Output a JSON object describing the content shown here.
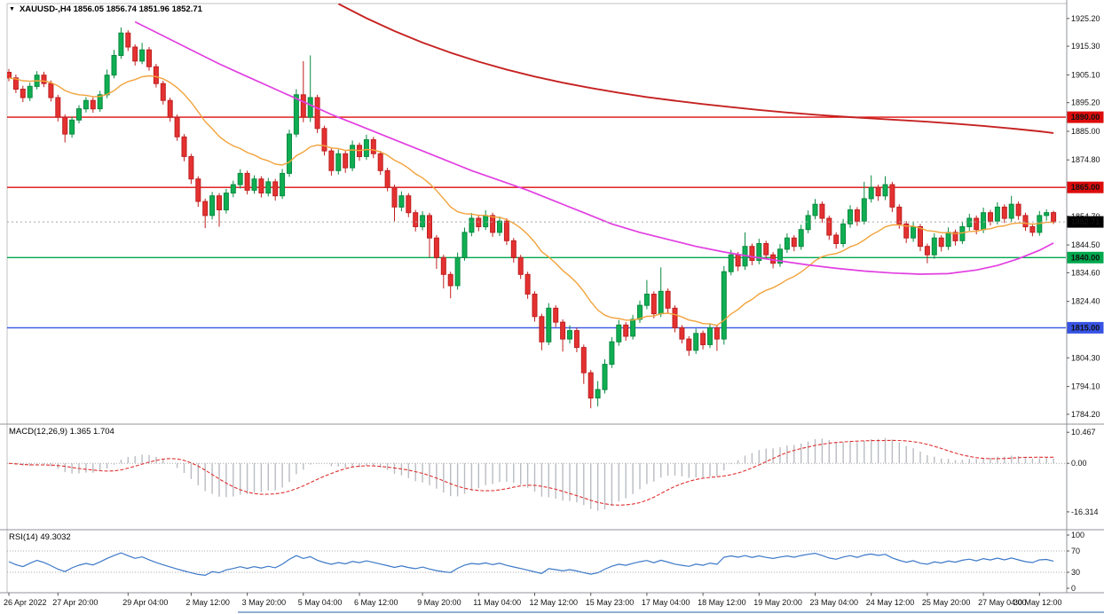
{
  "header": {
    "title": "XAUUSD-,H4 1856.05 1856.74 1851.96 1852.71",
    "menu_icon": "▼"
  },
  "colors": {
    "background": "#ffffff",
    "frame": "#8f9398",
    "up": "#0fae52",
    "up_dark": "#0a8a40",
    "down": "#e53131",
    "down_dark": "#bf2020",
    "ma_fast": "#f2a33c",
    "ma_mid": "#e23fe2",
    "ma_slow": "#c62222",
    "level_red": "#dd0b0b",
    "level_green": "#00a84d",
    "level_blue": "#3653e3",
    "price_marker_bg": "#000000",
    "dotted": "#a8a8a8",
    "macd_hist": "#b9bcc2",
    "macd_signal": "#e03030",
    "rsi_line": "#3c78c8",
    "axis_text": "#111111",
    "bottom_edge": "#6f94c4"
  },
  "chart_data": {
    "type": "candlestick",
    "symbol": "XAUUSD-",
    "timeframe": "H4",
    "last_bar": {
      "open": 1856.05,
      "high": 1856.74,
      "low": 1851.96,
      "close": 1852.71
    },
    "price_axis": {
      "min": 1781.0,
      "max": 1930.5,
      "ticks": [
        {
          "v": 1925.2,
          "t": "1925.20"
        },
        {
          "v": 1915.3,
          "t": "1915.30"
        },
        {
          "v": 1905.1,
          "t": "1905.10"
        },
        {
          "v": 1895.2,
          "t": "1895.20"
        },
        {
          "v": 1885.0,
          "t": "1885.00"
        },
        {
          "v": 1874.8,
          "t": "1874.80"
        },
        {
          "v": 1854.7,
          "t": "1854.70"
        },
        {
          "v": 1844.5,
          "t": "1844.50"
        },
        {
          "v": 1834.6,
          "t": "1834.60"
        },
        {
          "v": 1824.4,
          "t": "1824.40"
        },
        {
          "v": 1804.3,
          "t": "1804.30"
        },
        {
          "v": 1794.1,
          "t": "1794.10"
        },
        {
          "v": 1784.2,
          "t": "1784.20"
        }
      ]
    },
    "levels": [
      {
        "price": 1890.0,
        "label": "1890.00",
        "color": "red",
        "style": "solid"
      },
      {
        "price": 1865.0,
        "label": "1865.00",
        "color": "red",
        "style": "solid"
      },
      {
        "price": 1840.0,
        "label": "1840.00",
        "color": "green",
        "style": "solid"
      },
      {
        "price": 1815.0,
        "label": "1815.00",
        "color": "blue",
        "style": "solid"
      },
      {
        "price": 1852.71,
        "label": "1852.71",
        "color": "black",
        "style": "dotted"
      }
    ],
    "time_labels": [
      {
        "i": 0,
        "t": "26 Apr 2022"
      },
      {
        "i": 7,
        "t": "27 Apr 20:00"
      },
      {
        "i": 17,
        "t": "29 Apr 04:00"
      },
      {
        "i": 26,
        "t": "2 May 12:00"
      },
      {
        "i": 34,
        "t": "3 May 20:00"
      },
      {
        "i": 42,
        "t": "5 May 04:00"
      },
      {
        "i": 50,
        "t": "6 May 12:00"
      },
      {
        "i": 59,
        "t": "9 May 20:00"
      },
      {
        "i": 67,
        "t": "11 May 04:00"
      },
      {
        "i": 75,
        "t": "12 May 12:00"
      },
      {
        "i": 83,
        "t": "15 May 23:00"
      },
      {
        "i": 91,
        "t": "17 May 04:00"
      },
      {
        "i": 99,
        "t": "18 May 12:00"
      },
      {
        "i": 107,
        "t": "19 May 20:00"
      },
      {
        "i": 115,
        "t": "23 May 04:00"
      },
      {
        "i": 123,
        "t": "24 May 12:00"
      },
      {
        "i": 131,
        "t": "25 May 20:00"
      },
      {
        "i": 139,
        "t": "27 May 04:00"
      },
      {
        "i": 147,
        "t": "30 May 12:00"
      }
    ],
    "candles": [
      [
        1906,
        1907.2,
        1902.8,
        1904
      ],
      [
        1904,
        1905.2,
        1898.6,
        1900
      ],
      [
        1900,
        1901.2,
        1895.4,
        1897
      ],
      [
        1897,
        1902.3,
        1895.8,
        1901
      ],
      [
        1901,
        1906.4,
        1899.9,
        1905
      ],
      [
        1905,
        1906.2,
        1900.7,
        1902
      ],
      [
        1902,
        1903.1,
        1895.6,
        1897
      ],
      [
        1897,
        1898,
        1888.5,
        1890
      ],
      [
        1890,
        1891,
        1881,
        1884
      ],
      [
        1884,
        1890.2,
        1882.7,
        1889
      ],
      [
        1889,
        1894.3,
        1887.8,
        1893
      ],
      [
        1893,
        1897.2,
        1891.7,
        1896
      ],
      [
        1896,
        1897.1,
        1891.6,
        1893
      ],
      [
        1893,
        1899.4,
        1891.9,
        1898
      ],
      [
        1898,
        1907,
        1896.8,
        1905
      ],
      [
        1905,
        1914,
        1903.9,
        1912
      ],
      [
        1912,
        1922,
        1910.8,
        1920
      ],
      [
        1920,
        1921,
        1913.6,
        1915
      ],
      [
        1915,
        1916,
        1908.4,
        1910
      ],
      [
        1910,
        1916.5,
        1908.9,
        1914
      ],
      [
        1914,
        1915,
        1906.6,
        1908
      ],
      [
        1908,
        1909,
        1900.6,
        1902
      ],
      [
        1902,
        1903,
        1894.5,
        1896
      ],
      [
        1896,
        1897,
        1888.4,
        1890
      ],
      [
        1890,
        1891,
        1881.6,
        1883
      ],
      [
        1883,
        1884,
        1874.3,
        1876
      ],
      [
        1876,
        1877,
        1866.2,
        1868
      ],
      [
        1868,
        1869,
        1858.1,
        1860
      ],
      [
        1860,
        1861,
        1850.5,
        1855
      ],
      [
        1855,
        1863.4,
        1853.6,
        1862
      ],
      [
        1862,
        1863,
        1851,
        1857
      ],
      [
        1857,
        1864.5,
        1855.7,
        1863
      ],
      [
        1863,
        1867.4,
        1861.5,
        1866
      ],
      [
        1866,
        1871.5,
        1864.6,
        1870
      ],
      [
        1870,
        1871,
        1862.5,
        1864
      ],
      [
        1864,
        1869.3,
        1862.8,
        1868
      ],
      [
        1868,
        1869,
        1861.4,
        1863
      ],
      [
        1863,
        1868.4,
        1861.8,
        1867
      ],
      [
        1867,
        1868,
        1860.3,
        1862
      ],
      [
        1862,
        1871.6,
        1860.9,
        1870
      ],
      [
        1870,
        1885.6,
        1868.8,
        1884
      ],
      [
        1884,
        1900,
        1882.9,
        1898
      ],
      [
        1898,
        1910,
        1888.2,
        1890
      ],
      [
        1890,
        1912,
        1888.3,
        1897
      ],
      [
        1897,
        1898,
        1884.4,
        1886
      ],
      [
        1886,
        1887,
        1876.4,
        1878
      ],
      [
        1878,
        1879,
        1869.2,
        1871
      ],
      [
        1871,
        1878.5,
        1869.6,
        1877
      ],
      [
        1877,
        1878,
        1870.2,
        1872
      ],
      [
        1872,
        1881.7,
        1870.8,
        1880
      ],
      [
        1880,
        1881,
        1874.5,
        1876
      ],
      [
        1876,
        1883.8,
        1874.8,
        1882
      ],
      [
        1882,
        1883,
        1875.4,
        1877
      ],
      [
        1877,
        1878,
        1869.5,
        1871
      ],
      [
        1871,
        1872,
        1863.6,
        1865
      ],
      [
        1865,
        1866,
        1853,
        1858
      ],
      [
        1858,
        1863.6,
        1856.5,
        1862
      ],
      [
        1862,
        1863,
        1854.4,
        1856
      ],
      [
        1856,
        1857,
        1849.3,
        1851
      ],
      [
        1851,
        1856.5,
        1849.7,
        1855
      ],
      [
        1855,
        1856,
        1840,
        1847
      ],
      [
        1847,
        1848,
        1836,
        1840
      ],
      [
        1840,
        1841,
        1829,
        1834
      ],
      [
        1834,
        1835,
        1825.5,
        1830
      ],
      [
        1830,
        1841.8,
        1828.6,
        1840
      ],
      [
        1840,
        1850.7,
        1838.9,
        1849
      ],
      [
        1849,
        1855.9,
        1847.6,
        1854
      ],
      [
        1854,
        1855,
        1849.4,
        1851
      ],
      [
        1851,
        1856.9,
        1849.8,
        1855
      ],
      [
        1855,
        1856,
        1847.4,
        1849
      ],
      [
        1849,
        1854.6,
        1847.7,
        1853
      ],
      [
        1853,
        1854,
        1844.5,
        1846
      ],
      [
        1846,
        1847,
        1838.2,
        1840
      ],
      [
        1840,
        1841,
        1832.4,
        1834
      ],
      [
        1834,
        1835,
        1825.3,
        1827
      ],
      [
        1827,
        1828,
        1817.2,
        1819
      ],
      [
        1819,
        1820,
        1807,
        1810
      ],
      [
        1810,
        1823.8,
        1808.8,
        1822
      ],
      [
        1822,
        1823,
        1815.3,
        1817
      ],
      [
        1817,
        1818,
        1806.5,
        1811
      ],
      [
        1811,
        1815.9,
        1809.4,
        1814
      ],
      [
        1814,
        1815,
        1806.3,
        1808
      ],
      [
        1808,
        1809,
        1795,
        1799
      ],
      [
        1799,
        1800,
        1786.3,
        1790
      ],
      [
        1790,
        1796,
        1787,
        1793
      ],
      [
        1793,
        1803.8,
        1791.6,
        1802
      ],
      [
        1802,
        1811.7,
        1800.7,
        1810
      ],
      [
        1810,
        1817.8,
        1808.6,
        1816
      ],
      [
        1816,
        1817,
        1810.4,
        1812
      ],
      [
        1812,
        1819.6,
        1810.8,
        1818
      ],
      [
        1818,
        1824.7,
        1816.7,
        1823
      ],
      [
        1823,
        1832,
        1821.6,
        1827
      ],
      [
        1827,
        1828,
        1818.4,
        1820
      ],
      [
        1820,
        1836.5,
        1818.8,
        1828
      ],
      [
        1828,
        1829,
        1820.3,
        1822
      ],
      [
        1822,
        1823,
        1813.4,
        1815
      ],
      [
        1815,
        1816,
        1809.4,
        1811
      ],
      [
        1811,
        1812,
        1805,
        1807
      ],
      [
        1807,
        1814.7,
        1805.7,
        1813
      ],
      [
        1813,
        1814,
        1807.3,
        1809
      ],
      [
        1809,
        1816.6,
        1807.8,
        1815
      ],
      [
        1815,
        1816,
        1806.8,
        1811
      ],
      [
        1811,
        1837,
        1809,
        1835
      ],
      [
        1835,
        1842.8,
        1833.7,
        1841
      ],
      [
        1841,
        1842,
        1835.2,
        1837
      ],
      [
        1837,
        1849,
        1835.6,
        1844
      ],
      [
        1844,
        1845,
        1837.3,
        1839
      ],
      [
        1839,
        1846.7,
        1837.6,
        1845
      ],
      [
        1845,
        1846,
        1839.4,
        1841
      ],
      [
        1841,
        1842,
        1836.2,
        1838
      ],
      [
        1838,
        1844.8,
        1836.7,
        1843
      ],
      [
        1843,
        1848.6,
        1841.7,
        1847
      ],
      [
        1847,
        1848,
        1842.3,
        1844
      ],
      [
        1844,
        1851.7,
        1842.8,
        1850
      ],
      [
        1850,
        1856.8,
        1848.7,
        1855
      ],
      [
        1855,
        1860.9,
        1853.6,
        1859
      ],
      [
        1859,
        1860,
        1852.4,
        1854
      ],
      [
        1854,
        1855,
        1846.3,
        1848
      ],
      [
        1848,
        1849,
        1843.2,
        1845
      ],
      [
        1845,
        1853.8,
        1843.7,
        1852
      ],
      [
        1852,
        1858.7,
        1850.6,
        1857
      ],
      [
        1857,
        1858,
        1851.3,
        1853
      ],
      [
        1853,
        1867,
        1851.8,
        1861
      ],
      [
        1861,
        1869.3,
        1859.6,
        1865
      ],
      [
        1865,
        1866,
        1860.2,
        1862
      ],
      [
        1862,
        1869,
        1860.5,
        1866
      ],
      [
        1866,
        1867,
        1856.2,
        1858
      ],
      [
        1858,
        1859,
        1850.3,
        1852
      ],
      [
        1852,
        1853,
        1845.2,
        1847
      ],
      [
        1847,
        1852.6,
        1845.6,
        1851
      ],
      [
        1851,
        1852,
        1842.3,
        1844
      ],
      [
        1844,
        1845,
        1838,
        1841
      ],
      [
        1841,
        1848.7,
        1839.6,
        1847
      ],
      [
        1847,
        1848,
        1842.2,
        1844
      ],
      [
        1844,
        1850.8,
        1842.7,
        1849
      ],
      [
        1849,
        1850,
        1844.3,
        1846
      ],
      [
        1846,
        1852.7,
        1844.8,
        1851
      ],
      [
        1851,
        1855.6,
        1849.6,
        1854
      ],
      [
        1854,
        1855,
        1848.3,
        1850
      ],
      [
        1850,
        1857.8,
        1848.7,
        1856
      ],
      [
        1856,
        1857,
        1851.4,
        1853
      ],
      [
        1853,
        1859.7,
        1851.8,
        1858
      ],
      [
        1858,
        1859,
        1852.3,
        1854
      ],
      [
        1854,
        1862,
        1852.7,
        1859
      ],
      [
        1859,
        1860,
        1853.4,
        1855
      ],
      [
        1855,
        1856,
        1849.5,
        1851
      ],
      [
        1851,
        1852.2,
        1847.6,
        1849
      ],
      [
        1849,
        1856.6,
        1847.8,
        1855
      ],
      [
        1855,
        1857.2,
        1853.2,
        1856.05
      ],
      [
        1856.05,
        1856.74,
        1851.96,
        1852.71
      ]
    ],
    "overlays": {
      "fast_ma": {
        "kind": "ema",
        "period": 20
      },
      "mid_ma_points": [
        [
          18,
          1924
        ],
        [
          22,
          1919
        ],
        [
          26,
          1914
        ],
        [
          30,
          1909
        ],
        [
          34,
          1904.5
        ],
        [
          38,
          1900
        ],
        [
          42,
          1895.5
        ],
        [
          46,
          1891
        ],
        [
          50,
          1887
        ],
        [
          54,
          1883
        ],
        [
          58,
          1879
        ],
        [
          62,
          1875
        ],
        [
          66,
          1871
        ],
        [
          70,
          1867.5
        ],
        [
          74,
          1864
        ],
        [
          78,
          1860
        ],
        [
          82,
          1856
        ],
        [
          86,
          1852
        ],
        [
          90,
          1849
        ],
        [
          94,
          1846.5
        ],
        [
          98,
          1844
        ],
        [
          102,
          1842
        ],
        [
          106,
          1840.3
        ],
        [
          110,
          1838.8
        ],
        [
          114,
          1837.4
        ],
        [
          118,
          1836.2
        ],
        [
          122,
          1835.2
        ],
        [
          126,
          1834.5
        ],
        [
          130,
          1834.1
        ],
        [
          134,
          1834.3
        ],
        [
          138,
          1835.6
        ],
        [
          141,
          1837.2
        ],
        [
          144,
          1839.6
        ],
        [
          147,
          1842.6
        ],
        [
          149,
          1845.2
        ]
      ],
      "slow_ma_points": [
        [
          47,
          1930.4
        ],
        [
          51,
          1925.3
        ],
        [
          55,
          1920.7
        ],
        [
          59,
          1916.6
        ],
        [
          63,
          1913
        ],
        [
          67,
          1909.8
        ],
        [
          71,
          1907
        ],
        [
          75,
          1904.5
        ],
        [
          79,
          1902.3
        ],
        [
          83,
          1900.4
        ],
        [
          87,
          1898.7
        ],
        [
          91,
          1897.2
        ],
        [
          95,
          1895.9
        ],
        [
          99,
          1894.7
        ],
        [
          103,
          1893.6
        ],
        [
          107,
          1892.6
        ],
        [
          111,
          1891.7
        ],
        [
          115,
          1890.9
        ],
        [
          119,
          1890.2
        ],
        [
          123,
          1889.6
        ],
        [
          127,
          1889
        ],
        [
          131,
          1888.4
        ],
        [
          135,
          1887.7
        ],
        [
          139,
          1886.9
        ],
        [
          143,
          1886
        ],
        [
          147,
          1885
        ],
        [
          149,
          1884.4
        ]
      ]
    },
    "macd": {
      "display": "MACD(12,26,9) 1.365 1.704",
      "fast": 12,
      "slow": 26,
      "signal": 9,
      "axis": {
        "min": -22.0,
        "max": 12.9
      },
      "ticks": [
        {
          "v": 10.467,
          "t": "10.467"
        },
        {
          "v": 0,
          "t": "0.00"
        },
        {
          "v": -16.314,
          "t": "-16.314"
        }
      ]
    },
    "rsi": {
      "display": "RSI(14) 49.3032",
      "period": 14,
      "axis": {
        "min": 0,
        "max": 100
      },
      "ticks": [
        {
          "v": 100,
          "t": "100"
        },
        {
          "v": 70,
          "t": "70"
        },
        {
          "v": 30,
          "t": "30"
        },
        {
          "v": 0,
          "t": "0"
        }
      ],
      "levels": [
        70,
        30
      ]
    }
  }
}
